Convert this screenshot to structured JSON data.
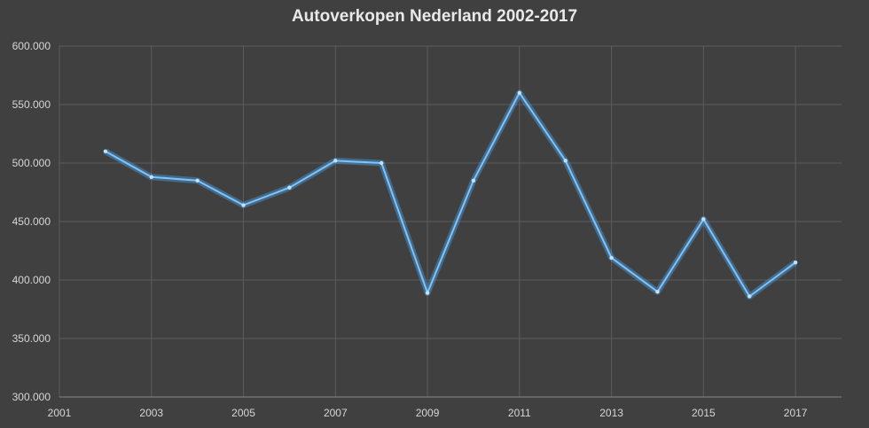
{
  "chart_data": {
    "type": "line",
    "title": "Autoverkopen Nederland 2002-2017",
    "xlabel": "",
    "ylabel": "",
    "xlim": [
      2001,
      2018
    ],
    "ylim": [
      300000,
      600000
    ],
    "x_ticks": [
      2001,
      2003,
      2005,
      2007,
      2009,
      2011,
      2013,
      2015,
      2017
    ],
    "x_tick_labels": [
      "2001",
      "2003",
      "2005",
      "2007",
      "2009",
      "2011",
      "2013",
      "2015",
      "2017"
    ],
    "y_ticks": [
      300000,
      350000,
      400000,
      450000,
      500000,
      550000,
      600000
    ],
    "y_tick_labels": [
      "300.000",
      "350.000",
      "400.000",
      "450.000",
      "500.000",
      "550.000",
      "600.000"
    ],
    "grid": true,
    "legend": "none",
    "series": [
      {
        "x": [
          2002,
          2003,
          2004,
          2005,
          2006,
          2007,
          2008,
          2009,
          2010,
          2011,
          2012,
          2013,
          2014,
          2015,
          2016,
          2017
        ],
        "values": [
          510000,
          488000,
          485000,
          464000,
          479000,
          502000,
          500000,
          389000,
          485000,
          560000,
          502000,
          419000,
          390000,
          452000,
          386000,
          415000
        ]
      }
    ],
    "colors": {
      "background": "#404040",
      "line": "#7ec4ff",
      "glow": "#4a9ede",
      "grid": "#5d5d5d",
      "text": "#d6d6d6",
      "title": "#e9e9e9"
    }
  }
}
